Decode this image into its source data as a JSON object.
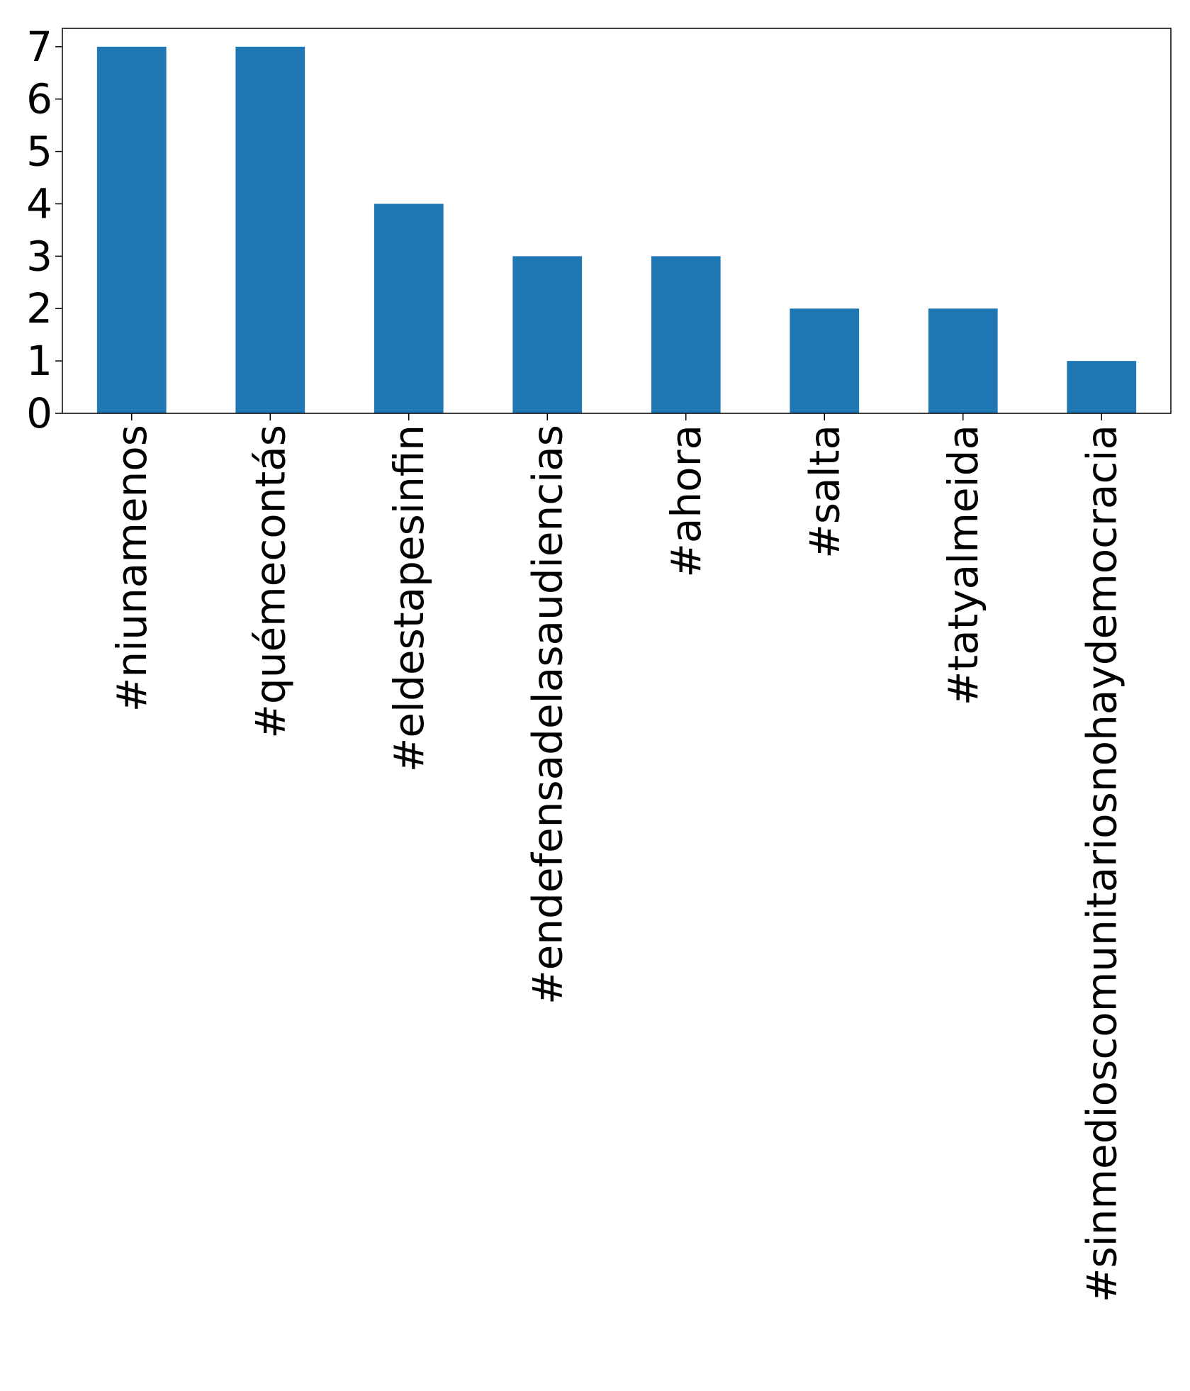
{
  "chart_data": {
    "type": "bar",
    "title": "",
    "xlabel": "",
    "ylabel": "",
    "categories": [
      "#niunamenos",
      "#quémecontás",
      "#eldestapesinfin",
      "#endefensadelasaudiencias",
      "#ahora",
      "#salta",
      "#tatyalmeida",
      "#sinmedioscomunitariosnohaydemocracia"
    ],
    "values": [
      7,
      7,
      4,
      3,
      3,
      2,
      2,
      1
    ],
    "ylim": [
      0,
      7.35
    ],
    "yticks": [
      0,
      1,
      2,
      3,
      4,
      5,
      6,
      7
    ],
    "grid": false,
    "legend": "none",
    "colors": {
      "bar": "#1f77b4",
      "axis": "#000000",
      "background": "#ffffff"
    }
  }
}
